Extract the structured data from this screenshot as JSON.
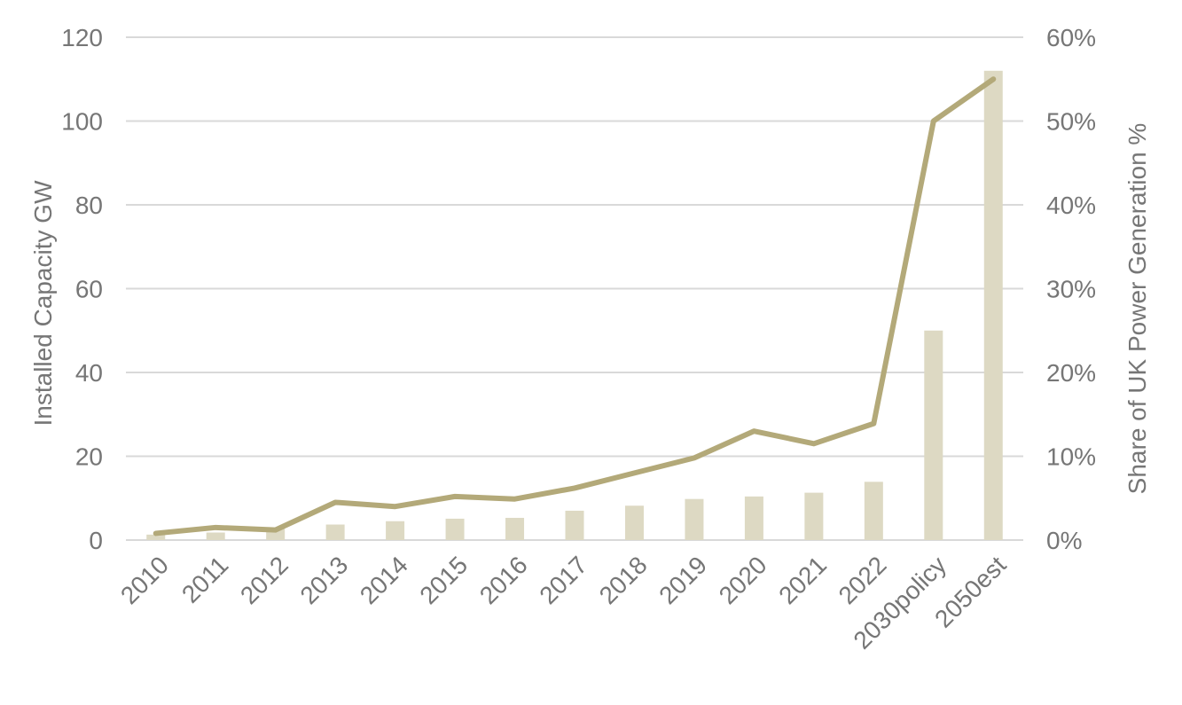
{
  "chart_data": {
    "type": "bar",
    "categories": [
      "2010",
      "2011",
      "2012",
      "2013",
      "2014",
      "2015",
      "2016",
      "2017",
      "2018",
      "2019",
      "2020",
      "2021",
      "2022",
      "2030policy",
      "2050est"
    ],
    "series": [
      {
        "type": "bar",
        "axis": "left",
        "values": [
          1.3,
          1.8,
          2.9,
          3.7,
          4.5,
          5.1,
          5.3,
          7.0,
          8.2,
          9.8,
          10.4,
          11.3,
          13.9,
          50,
          112
        ]
      },
      {
        "type": "line",
        "axis": "right",
        "values": [
          0.8,
          1.5,
          1.2,
          4.5,
          4.0,
          5.2,
          4.9,
          6.2,
          8.0,
          9.8,
          13.0,
          11.5,
          13.9,
          50.0,
          55.0
        ]
      }
    ],
    "ylabel": "Installed Capacity GW",
    "y2label": "Share of UK Power Generation %",
    "ylim": [
      0,
      120
    ],
    "y2lim": [
      0,
      60
    ],
    "yticks": [
      "0",
      "20",
      "40",
      "60",
      "80",
      "100",
      "120"
    ],
    "y2ticks": [
      "0%",
      "10%",
      "20%",
      "30%",
      "40%",
      "50%",
      "60%"
    ],
    "grid": true,
    "legend": "none",
    "colors": {
      "bar": "#ddd9c3",
      "line": "#b3a979",
      "grid": "#d9d9d9",
      "text": "#767676"
    }
  }
}
